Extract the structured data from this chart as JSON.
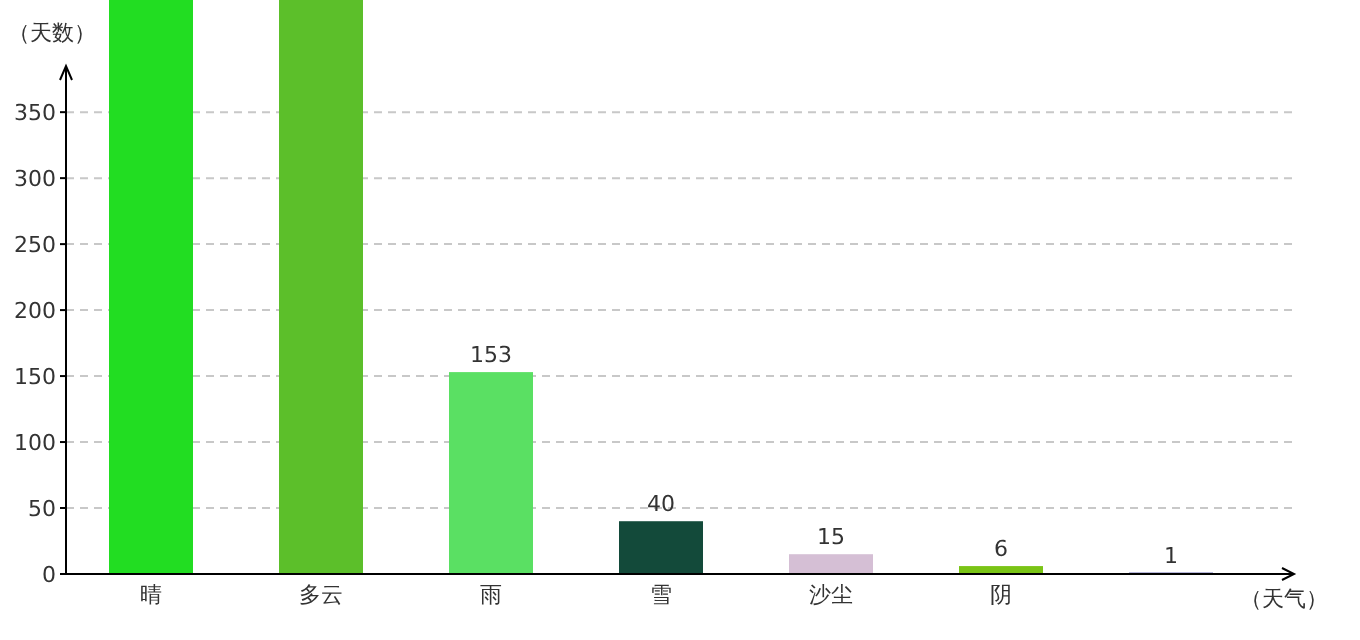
{
  "chart_data": {
    "type": "bar",
    "xlabel": "（天气）",
    "ylabel": "（天数）",
    "categories": [
      "晴",
      "多云",
      "雨",
      "雪",
      "沙尘",
      "阴",
      null
    ],
    "values": [
      435,
      435,
      153,
      40,
      15,
      6,
      1
    ],
    "colors": [
      "#22dd22",
      "#5cbf2a",
      "#5ae063",
      "#134a3a",
      "#d5bfd5",
      "#7ac416",
      "#1a1a8a"
    ],
    "value_labels": [
      null,
      null,
      "153",
      "40",
      "15",
      "6",
      "1"
    ],
    "ylim": [
      0,
      435
    ],
    "yticks": [
      0,
      50,
      100,
      150,
      200,
      250,
      300,
      350
    ],
    "grid": "y"
  }
}
